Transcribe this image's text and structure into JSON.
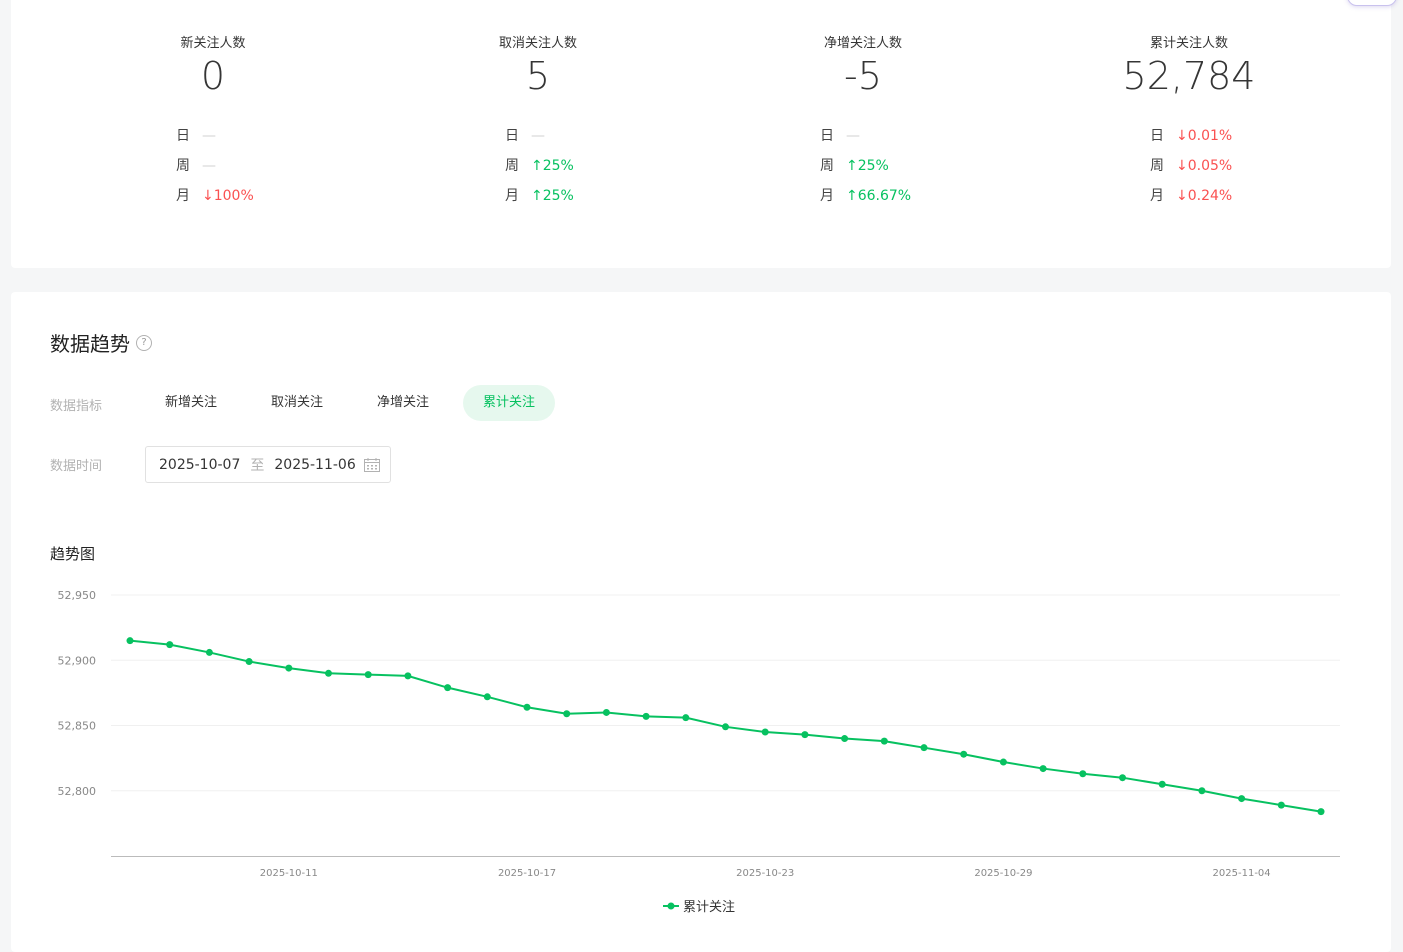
{
  "stats": [
    {
      "label": "新关注人数",
      "value": "0",
      "rows": [
        {
          "key": "日",
          "val": "—",
          "trend": "none"
        },
        {
          "key": "周",
          "val": "—",
          "trend": "none"
        },
        {
          "key": "月",
          "val": "↓100%",
          "trend": "down"
        }
      ]
    },
    {
      "label": "取消关注人数",
      "value": "5",
      "rows": [
        {
          "key": "日",
          "val": "—",
          "trend": "none"
        },
        {
          "key": "周",
          "val": "↑25%",
          "trend": "up"
        },
        {
          "key": "月",
          "val": "↑25%",
          "trend": "up"
        }
      ]
    },
    {
      "label": "净增关注人数",
      "value": "-5",
      "rows": [
        {
          "key": "日",
          "val": "—",
          "trend": "none"
        },
        {
          "key": "周",
          "val": "↑25%",
          "trend": "up"
        },
        {
          "key": "月",
          "val": "↑66.67%",
          "trend": "up"
        }
      ]
    },
    {
      "label": "累计关注人数",
      "value": "52,784",
      "rows": [
        {
          "key": "日",
          "val": "↓0.01%",
          "trend": "down"
        },
        {
          "key": "周",
          "val": "↓0.05%",
          "trend": "down"
        },
        {
          "key": "月",
          "val": "↓0.24%",
          "trend": "down"
        }
      ]
    }
  ],
  "trend": {
    "title": "数据趋势",
    "help_icon": "question-circle-icon",
    "metric_label": "数据指标",
    "metric_tabs": [
      "新增关注",
      "取消关注",
      "净增关注",
      "累计关注"
    ],
    "active_tab": "累计关注",
    "time_label": "数据时间",
    "date_start": "2025-10-07",
    "date_sep": "至",
    "date_end": "2025-11-06",
    "calendar_icon": "calendar-icon",
    "chart_title": "趋势图"
  },
  "colors": {
    "accent": "#07c160",
    "down": "#fa5151",
    "up": "#07c160"
  },
  "chart_data": {
    "type": "line",
    "x": [
      "2025-10-07",
      "2025-10-08",
      "2025-10-09",
      "2025-10-10",
      "2025-10-11",
      "2025-10-12",
      "2025-10-13",
      "2025-10-14",
      "2025-10-15",
      "2025-10-16",
      "2025-10-17",
      "2025-10-18",
      "2025-10-19",
      "2025-10-20",
      "2025-10-21",
      "2025-10-22",
      "2025-10-23",
      "2025-10-24",
      "2025-10-25",
      "2025-10-26",
      "2025-10-27",
      "2025-10-28",
      "2025-10-29",
      "2025-10-30",
      "2025-10-31",
      "2025-11-01",
      "2025-11-02",
      "2025-11-03",
      "2025-11-04",
      "2025-11-05",
      "2025-11-06"
    ],
    "series": [
      {
        "name": "累计关注",
        "values": [
          52915,
          52912,
          52906,
          52899,
          52894,
          52890,
          52889,
          52888,
          52879,
          52872,
          52864,
          52859,
          52860,
          52857,
          52856,
          52849,
          52845,
          52843,
          52840,
          52838,
          52833,
          52828,
          52822,
          52817,
          52813,
          52810,
          52805,
          52800,
          52794,
          52789,
          52784
        ]
      }
    ],
    "xticks": [
      "2025-10-11",
      "2025-10-17",
      "2025-10-23",
      "2025-10-29",
      "2025-11-04"
    ],
    "yticks": [
      52800,
      52850,
      52900,
      52950
    ],
    "ytick_labels": [
      "52,800",
      "52,850",
      "52,900",
      "52,950"
    ],
    "ylim": [
      52750,
      52950
    ],
    "grid": true,
    "legend": "bottom-center",
    "xlabel": "",
    "ylabel": "",
    "title": ""
  }
}
